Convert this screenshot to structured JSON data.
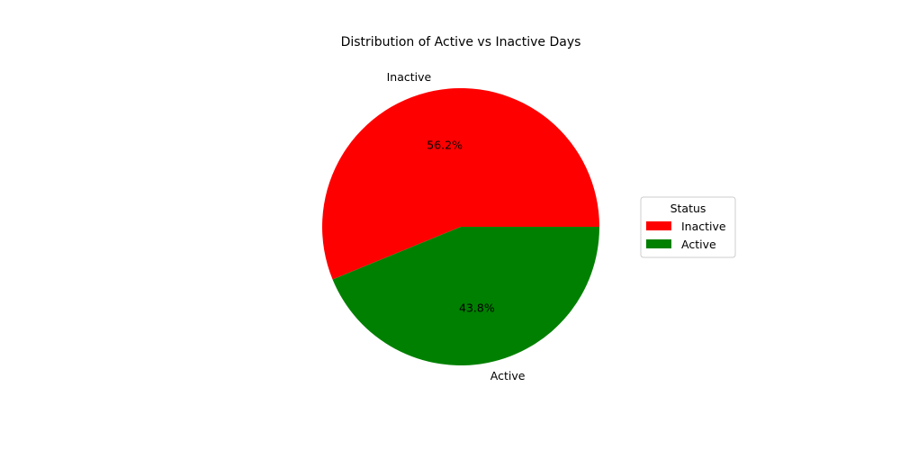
{
  "chart_data": {
    "type": "pie",
    "title": "Distribution of Active vs Inactive Days",
    "slices": [
      {
        "label": "Inactive",
        "value": 56.2,
        "pct_label": "56.2%",
        "color": "#ff0000"
      },
      {
        "label": "Active",
        "value": 43.8,
        "pct_label": "43.8%",
        "color": "#008000"
      }
    ],
    "start_angle_deg": 0,
    "direction": "counterclockwise",
    "legend": {
      "title": "Status",
      "placement": "right",
      "entries": [
        "Inactive",
        "Active"
      ]
    }
  }
}
